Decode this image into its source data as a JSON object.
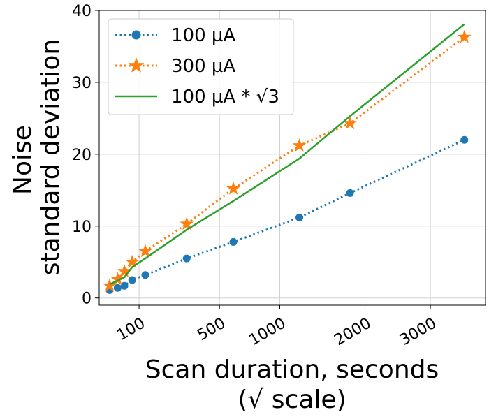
{
  "chart_data": {
    "type": "line",
    "title": "",
    "xlabel_lines": [
      "Scan duration, seconds",
      "(√ scale)"
    ],
    "ylabel_lines": [
      "Noise",
      "standard deviation"
    ],
    "x_scale": "sqrt",
    "xlim": [
      15,
      4000
    ],
    "ylim": [
      -1,
      40
    ],
    "x_ticks": [
      100,
      500,
      1000,
      2000,
      3000
    ],
    "x_tick_labels": [
      "100",
      "500",
      "1000",
      "2000",
      "3000"
    ],
    "y_ticks": [
      0,
      10,
      20,
      30,
      40
    ],
    "y_tick_labels": [
      "0",
      "10",
      "20",
      "30",
      "40"
    ],
    "grid": true,
    "legend_position": "upper-left",
    "series": [
      {
        "name": "100 µA",
        "color": "#1f77b4",
        "line_style": "dotted",
        "marker": "circle",
        "x": [
          30,
          45,
          60,
          80,
          120,
          300,
          600,
          1200,
          1800,
          3600
        ],
        "y": [
          1.1,
          1.4,
          1.7,
          2.5,
          3.2,
          5.5,
          7.8,
          11.2,
          14.6,
          22.0
        ]
      },
      {
        "name": "300 µA",
        "color": "#ff7f0e",
        "line_style": "dotted",
        "marker": "star",
        "x": [
          30,
          45,
          60,
          80,
          120,
          300,
          600,
          1200,
          1800,
          3600
        ],
        "y": [
          1.7,
          2.6,
          3.7,
          5.0,
          6.5,
          10.3,
          15.2,
          21.2,
          24.3,
          36.3
        ]
      },
      {
        "name": "100 µA * √3",
        "color": "#2ca02c",
        "line_style": "solid",
        "marker": "none",
        "x": [
          30,
          45,
          60,
          80,
          120,
          300,
          600,
          1200,
          1800,
          3600
        ],
        "y": [
          1.9,
          2.4,
          2.9,
          4.3,
          5.5,
          9.5,
          13.5,
          19.4,
          25.3,
          38.1
        ]
      }
    ]
  }
}
